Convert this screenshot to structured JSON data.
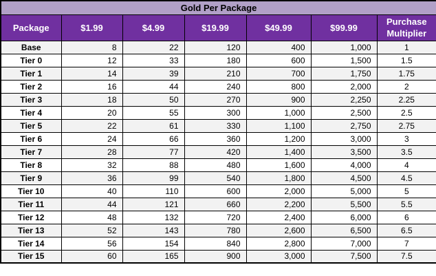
{
  "title": "Gold Per Package",
  "columns": [
    "Package",
    "$1.99",
    "$4.99",
    "$19.99",
    "$49.99",
    "$99.99",
    "Purchase Multiplier"
  ],
  "rows": [
    {
      "package": "Base",
      "values": [
        "8",
        "22",
        "120",
        "400",
        "1,000"
      ],
      "multiplier": "1"
    },
    {
      "package": "Tier 0",
      "values": [
        "12",
        "33",
        "180",
        "600",
        "1,500"
      ],
      "multiplier": "1.5"
    },
    {
      "package": "Tier 1",
      "values": [
        "14",
        "39",
        "210",
        "700",
        "1,750"
      ],
      "multiplier": "1.75"
    },
    {
      "package": "Tier 2",
      "values": [
        "16",
        "44",
        "240",
        "800",
        "2,000"
      ],
      "multiplier": "2"
    },
    {
      "package": "Tier 3",
      "values": [
        "18",
        "50",
        "270",
        "900",
        "2,250"
      ],
      "multiplier": "2.25"
    },
    {
      "package": "Tier 4",
      "values": [
        "20",
        "55",
        "300",
        "1,000",
        "2,500"
      ],
      "multiplier": "2.5"
    },
    {
      "package": "Tier 5",
      "values": [
        "22",
        "61",
        "330",
        "1,100",
        "2,750"
      ],
      "multiplier": "2.75"
    },
    {
      "package": "Tier 6",
      "values": [
        "24",
        "66",
        "360",
        "1,200",
        "3,000"
      ],
      "multiplier": "3"
    },
    {
      "package": "Tier 7",
      "values": [
        "28",
        "77",
        "420",
        "1,400",
        "3,500"
      ],
      "multiplier": "3.5"
    },
    {
      "package": "Tier 8",
      "values": [
        "32",
        "88",
        "480",
        "1,600",
        "4,000"
      ],
      "multiplier": "4"
    },
    {
      "package": "Tier 9",
      "values": [
        "36",
        "99",
        "540",
        "1,800",
        "4,500"
      ],
      "multiplier": "4.5"
    },
    {
      "package": "Tier 10",
      "values": [
        "40",
        "110",
        "600",
        "2,000",
        "5,000"
      ],
      "multiplier": "5"
    },
    {
      "package": "Tier 11",
      "values": [
        "44",
        "121",
        "660",
        "2,200",
        "5,500"
      ],
      "multiplier": "5.5"
    },
    {
      "package": "Tier 12",
      "values": [
        "48",
        "132",
        "720",
        "2,400",
        "6,000"
      ],
      "multiplier": "6"
    },
    {
      "package": "Tier 13",
      "values": [
        "52",
        "143",
        "780",
        "2,600",
        "6,500"
      ],
      "multiplier": "6.5"
    },
    {
      "package": "Tier 14",
      "values": [
        "56",
        "154",
        "840",
        "2,800",
        "7,000"
      ],
      "multiplier": "7"
    },
    {
      "package": "Tier 15",
      "values": [
        "60",
        "165",
        "900",
        "3,000",
        "7,500"
      ],
      "multiplier": "7.5"
    }
  ],
  "colors": {
    "title_background": "#b1a0c7",
    "header_background": "#7030a0",
    "header_text": "#ffffff",
    "stripe_background": "#f2f2f2",
    "row_background": "#ffffff",
    "border": "#000000",
    "text": "#000000"
  }
}
